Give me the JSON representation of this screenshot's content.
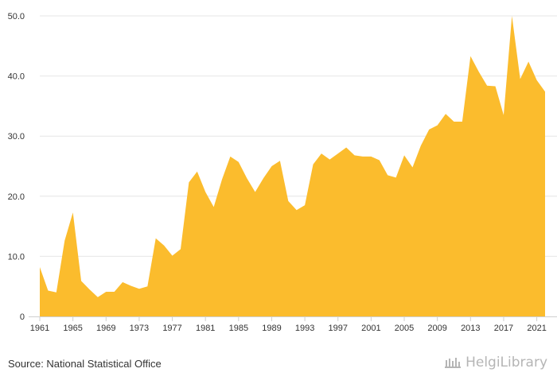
{
  "chart_data": {
    "type": "area",
    "title": "",
    "xlabel": "",
    "ylabel": "",
    "ylim": [
      0,
      50
    ],
    "yticks": [
      "0",
      "10.0",
      "20.0",
      "30.0",
      "40.0",
      "50.0"
    ],
    "xticks": [
      "1961",
      "1965",
      "1969",
      "1973",
      "1977",
      "1981",
      "1985",
      "1989",
      "1993",
      "1997",
      "2001",
      "2005",
      "2009",
      "2013",
      "2017",
      "2021"
    ],
    "grid": true,
    "fill_color": "#fbbc2d",
    "x": [
      1961,
      1962,
      1963,
      1964,
      1965,
      1966,
      1967,
      1968,
      1969,
      1970,
      1971,
      1972,
      1973,
      1974,
      1975,
      1976,
      1977,
      1978,
      1979,
      1980,
      1981,
      1982,
      1983,
      1984,
      1985,
      1986,
      1987,
      1988,
      1989,
      1990,
      1991,
      1992,
      1993,
      1994,
      1995,
      1996,
      1997,
      1998,
      1999,
      2000,
      2001,
      2002,
      2003,
      2004,
      2005,
      2006,
      2007,
      2008,
      2009,
      2010,
      2011,
      2012,
      2013,
      2014,
      2015,
      2016,
      2017,
      2018,
      2019,
      2020,
      2021,
      2022
    ],
    "values": [
      8.2,
      4.3,
      4.0,
      12.6,
      17.3,
      5.9,
      4.5,
      3.2,
      4.1,
      4.1,
      5.7,
      5.1,
      4.6,
      5.0,
      13.0,
      11.8,
      10.1,
      11.2,
      22.3,
      24.1,
      20.7,
      18.2,
      22.8,
      26.6,
      25.7,
      23.0,
      20.7,
      23.0,
      25.0,
      25.9,
      19.2,
      17.7,
      18.5,
      25.3,
      27.1,
      26.1,
      27.1,
      28.1,
      26.8,
      26.6,
      26.6,
      26.0,
      23.5,
      23.1,
      26.8,
      24.8,
      28.4,
      31.1,
      31.8,
      33.7,
      32.4,
      32.4,
      43.3,
      40.7,
      38.4,
      38.3,
      33.5,
      50.0,
      39.5,
      42.4,
      39.3,
      37.4
    ]
  },
  "footer": {
    "source": "Source: National Statistical Office",
    "brand": "HelgiLibrary"
  }
}
